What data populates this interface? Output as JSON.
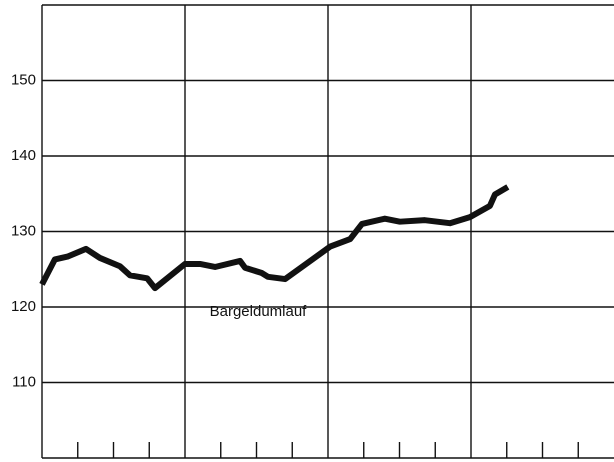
{
  "chart_data": {
    "type": "line",
    "annotation": "Bargeldumlauf",
    "x": [
      0,
      0.36,
      0.73,
      1.23,
      1.62,
      2.18,
      2.46,
      2.94,
      3.16,
      4.0,
      4.42,
      4.84,
      5.54,
      5.68,
      6.15,
      6.32,
      6.8,
      8.06,
      8.62,
      8.95,
      9.59,
      10.01,
      10.71,
      11.41,
      11.97,
      12.53,
      12.67,
      13.03
    ],
    "series": [
      {
        "color": "#111111",
        "values": [
          123,
          126.3,
          126.7,
          127.7,
          126.5,
          125.4,
          124.2,
          123.8,
          122.5,
          125.7,
          125.7,
          125.3,
          126.1,
          125.2,
          124.5,
          124,
          123.7,
          128,
          129,
          131,
          131.7,
          131.3,
          131.5,
          131.1,
          131.9,
          133.4,
          134.9,
          135.9
        ]
      }
    ],
    "xlim": [
      0,
      16
    ],
    "xticks": [
      4,
      8,
      12
    ],
    "xminor_ticks": [
      1,
      2,
      3,
      5,
      6,
      7,
      9,
      10,
      11,
      13,
      14,
      15
    ],
    "ylim": [
      100,
      160
    ],
    "yticks": [
      110,
      120,
      130,
      140,
      150
    ],
    "grid": true
  }
}
